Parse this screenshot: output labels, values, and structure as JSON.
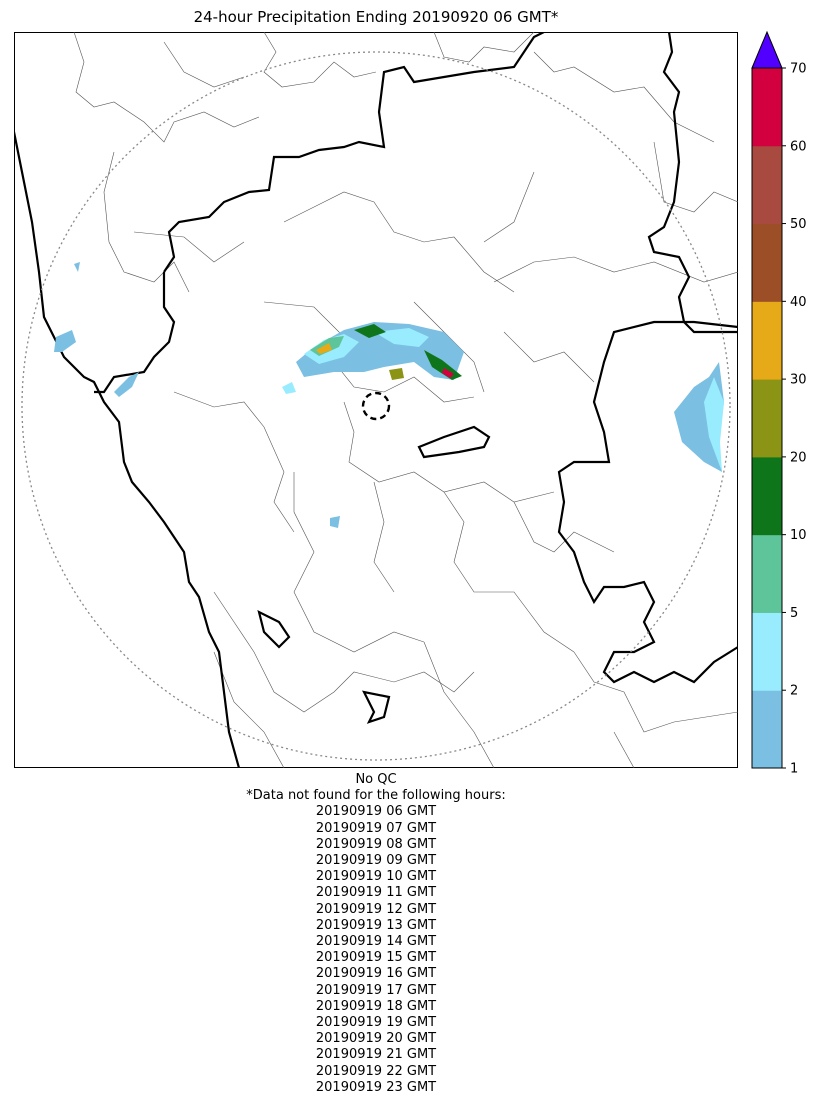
{
  "title": "24-hour Precipitation Ending 20190920 06 GMT*",
  "colorbar": {
    "ticks": [
      "1",
      "2",
      "5",
      "10",
      "20",
      "30",
      "40",
      "50",
      "60",
      "70"
    ],
    "colors": [
      "#7bbfe2",
      "#99ecfd",
      "#5ec49a",
      "#0f751a",
      "#8c9415",
      "#e6a918",
      "#9c4f27",
      "#a94a41",
      "#d2003f"
    ],
    "over_color": "#5100ff"
  },
  "footer": {
    "qc_note": "No QC",
    "missing_header": "*Data not found for the following hours:",
    "missing_hours": [
      "20190919 06 GMT",
      "20190919 07 GMT",
      "20190919 08 GMT",
      "20190919 09 GMT",
      "20190919 10 GMT",
      "20190919 11 GMT",
      "20190919 12 GMT",
      "20190919 13 GMT",
      "20190919 14 GMT",
      "20190919 15 GMT",
      "20190919 16 GMT",
      "20190919 17 GMT",
      "20190919 18 GMT",
      "20190919 19 GMT",
      "20190919 20 GMT",
      "20190919 21 GMT",
      "20190919 22 GMT",
      "20190919 23 GMT"
    ]
  }
}
